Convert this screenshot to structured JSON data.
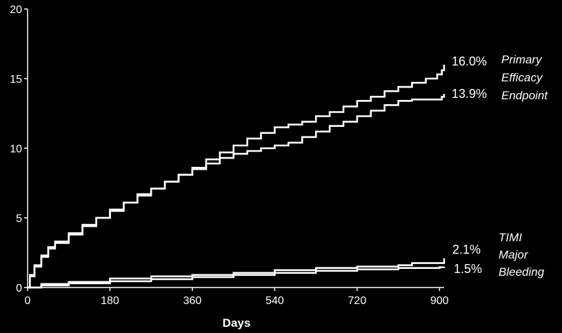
{
  "chart_data": {
    "type": "line",
    "step": true,
    "background": "#000000",
    "line_color": "#ffffff",
    "xlabel": "Days",
    "ylabel": "",
    "xlim": [
      0,
      910
    ],
    "ylim": [
      0,
      20
    ],
    "x_ticks": [
      "0",
      "180",
      "360",
      "540",
      "720",
      "900"
    ],
    "y_ticks": [
      "0",
      "5",
      "10",
      "15",
      "20"
    ],
    "grid": false,
    "groups": [
      {
        "label_lines": [
          "Primary",
          "Efficacy",
          "Endpoint"
        ],
        "series": [
          {
            "end_label": "16.0%",
            "x": [
              0,
              5,
              15,
              30,
              45,
              60,
              90,
              120,
              150,
              180,
              210,
              240,
              270,
              300,
              330,
              360,
              390,
              420,
              450,
              480,
              510,
              540,
              570,
              600,
              630,
              660,
              690,
              720,
              750,
              780,
              810,
              840,
              870,
              895,
              905,
              910
            ],
            "y": [
              0,
              0.9,
              1.6,
              2.3,
              2.9,
              3.3,
              3.9,
              4.5,
              5.0,
              5.6,
              6.1,
              6.7,
              7.1,
              7.6,
              8.1,
              8.6,
              9.2,
              9.7,
              10.2,
              10.7,
              11.1,
              11.5,
              11.7,
              11.9,
              12.3,
              12.6,
              13.0,
              13.4,
              13.7,
              14.1,
              14.4,
              14.7,
              15.0,
              15.3,
              15.6,
              16.0
            ]
          },
          {
            "end_label": "13.9%",
            "x": [
              0,
              5,
              15,
              30,
              45,
              60,
              90,
              120,
              150,
              180,
              210,
              240,
              270,
              300,
              330,
              360,
              390,
              420,
              450,
              480,
              510,
              540,
              570,
              600,
              630,
              660,
              690,
              720,
              750,
              780,
              810,
              840,
              870,
              900,
              905,
              910
            ],
            "y": [
              0,
              0.8,
              1.5,
              2.2,
              2.8,
              3.2,
              3.8,
              4.4,
              5.0,
              5.5,
              6.1,
              6.6,
              7.1,
              7.6,
              8.1,
              8.5,
              8.9,
              9.3,
              9.6,
              9.8,
              10.0,
              10.2,
              10.4,
              10.8,
              11.2,
              11.6,
              11.9,
              12.3,
              12.7,
              13.1,
              13.4,
              13.5,
              13.5,
              13.5,
              13.7,
              13.9
            ]
          }
        ]
      },
      {
        "label_lines": [
          "TIMI",
          "Major",
          "Bleeding"
        ],
        "series": [
          {
            "end_label": "2.1%",
            "x": [
              0,
              30,
              90,
              180,
              270,
              360,
              450,
              540,
              630,
              720,
              810,
              840,
              900,
              910
            ],
            "y": [
              0,
              0.25,
              0.4,
              0.65,
              0.8,
              0.9,
              1.05,
              1.25,
              1.4,
              1.5,
              1.6,
              1.75,
              1.75,
              2.1
            ]
          },
          {
            "end_label": "1.5%",
            "x": [
              0,
              30,
              90,
              180,
              270,
              360,
              450,
              540,
              630,
              720,
              810,
              900,
              910
            ],
            "y": [
              0,
              0.15,
              0.3,
              0.45,
              0.6,
              0.75,
              0.9,
              1.05,
              1.2,
              1.3,
              1.4,
              1.45,
              1.5
            ]
          }
        ]
      }
    ]
  }
}
